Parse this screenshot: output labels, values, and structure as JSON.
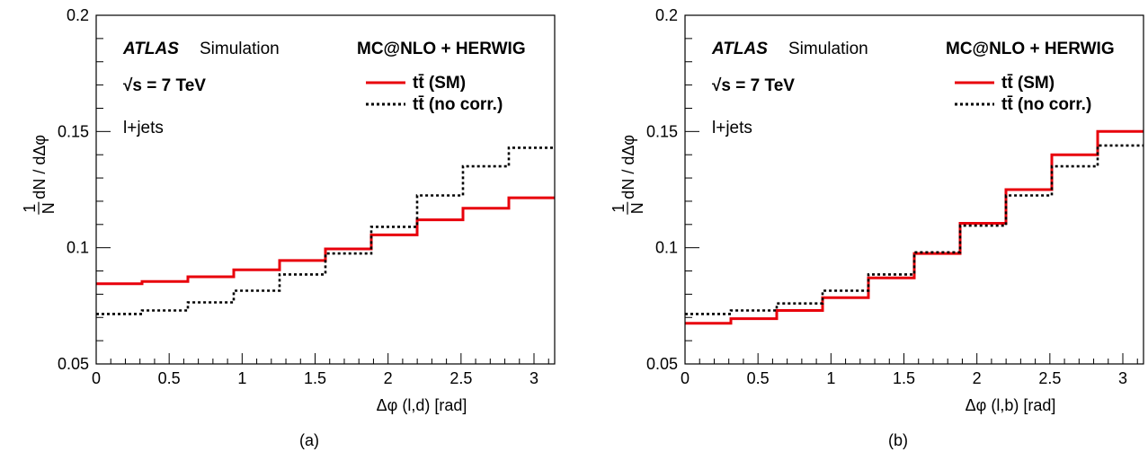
{
  "chart_data": [
    {
      "type": "line",
      "panel_label": "(a)",
      "xlabel": "Δφ (l,d) [rad]",
      "ylabel_frac_num": "1",
      "ylabel_frac_den": "N",
      "ylabel_rest": "dN / dΔφ",
      "xlim": [
        0,
        3.1416
      ],
      "ylim": [
        0.05,
        0.2
      ],
      "x_ticks": [
        0,
        0.5,
        1,
        1.5,
        2,
        2.5,
        3
      ],
      "x_tick_labels": [
        "0",
        "0.5",
        "1",
        "1.5",
        "2",
        "2.5",
        "3"
      ],
      "y_ticks": [
        0.05,
        0.1,
        0.15,
        0.2
      ],
      "y_tick_labels": [
        "0.05",
        "0.1",
        "0.15",
        "0.2"
      ],
      "bin_edges": [
        0,
        0.3142,
        0.6283,
        0.9425,
        1.2566,
        1.5708,
        1.885,
        2.1991,
        2.5133,
        2.8274,
        3.1416
      ],
      "series": [
        {
          "name": "tt̄ (SM)",
          "style": "solid",
          "color": "#e8000b",
          "values": [
            0.0845,
            0.0855,
            0.0875,
            0.0905,
            0.0945,
            0.0995,
            0.1055,
            0.112,
            0.117,
            0.1215
          ]
        },
        {
          "name": "tt̄ (no corr.)",
          "style": "dotted",
          "color": "#000000",
          "values": [
            0.0715,
            0.073,
            0.0765,
            0.0815,
            0.0885,
            0.0975,
            0.109,
            0.1225,
            0.135,
            0.143
          ]
        }
      ],
      "annotations": {
        "atlas": "ATLAS",
        "simulation": "Simulation",
        "energy": "√s = 7 TeV",
        "channel": "l+jets",
        "generator": "MC@NLO + HERWIG"
      },
      "grid": false,
      "legend_position": "top-right"
    },
    {
      "type": "line",
      "panel_label": "(b)",
      "xlabel": "Δφ (l,b) [rad]",
      "ylabel_frac_num": "1",
      "ylabel_frac_den": "N",
      "ylabel_rest": "dN / dΔφ",
      "xlim": [
        0,
        3.1416
      ],
      "ylim": [
        0.05,
        0.2
      ],
      "x_ticks": [
        0,
        0.5,
        1,
        1.5,
        2,
        2.5,
        3
      ],
      "x_tick_labels": [
        "0",
        "0.5",
        "1",
        "1.5",
        "2",
        "2.5",
        "3"
      ],
      "y_ticks": [
        0.05,
        0.1,
        0.15,
        0.2
      ],
      "y_tick_labels": [
        "0.05",
        "0.1",
        "0.15",
        "0.2"
      ],
      "bin_edges": [
        0,
        0.3142,
        0.6283,
        0.9425,
        1.2566,
        1.5708,
        1.885,
        2.1991,
        2.5133,
        2.8274,
        3.1416
      ],
      "series": [
        {
          "name": "tt̄ (SM)",
          "style": "solid",
          "color": "#e8000b",
          "values": [
            0.0675,
            0.0695,
            0.073,
            0.0785,
            0.087,
            0.0975,
            0.1105,
            0.125,
            0.14,
            0.15
          ]
        },
        {
          "name": "tt̄ (no corr.)",
          "style": "dotted",
          "color": "#000000",
          "values": [
            0.0715,
            0.073,
            0.076,
            0.0815,
            0.0885,
            0.098,
            0.1095,
            0.1225,
            0.135,
            0.144
          ]
        }
      ],
      "annotations": {
        "atlas": "ATLAS",
        "simulation": "Simulation",
        "energy": "√s = 7 TeV",
        "channel": "l+jets",
        "generator": "MC@NLO + HERWIG"
      },
      "grid": false,
      "legend_position": "top-right"
    }
  ]
}
